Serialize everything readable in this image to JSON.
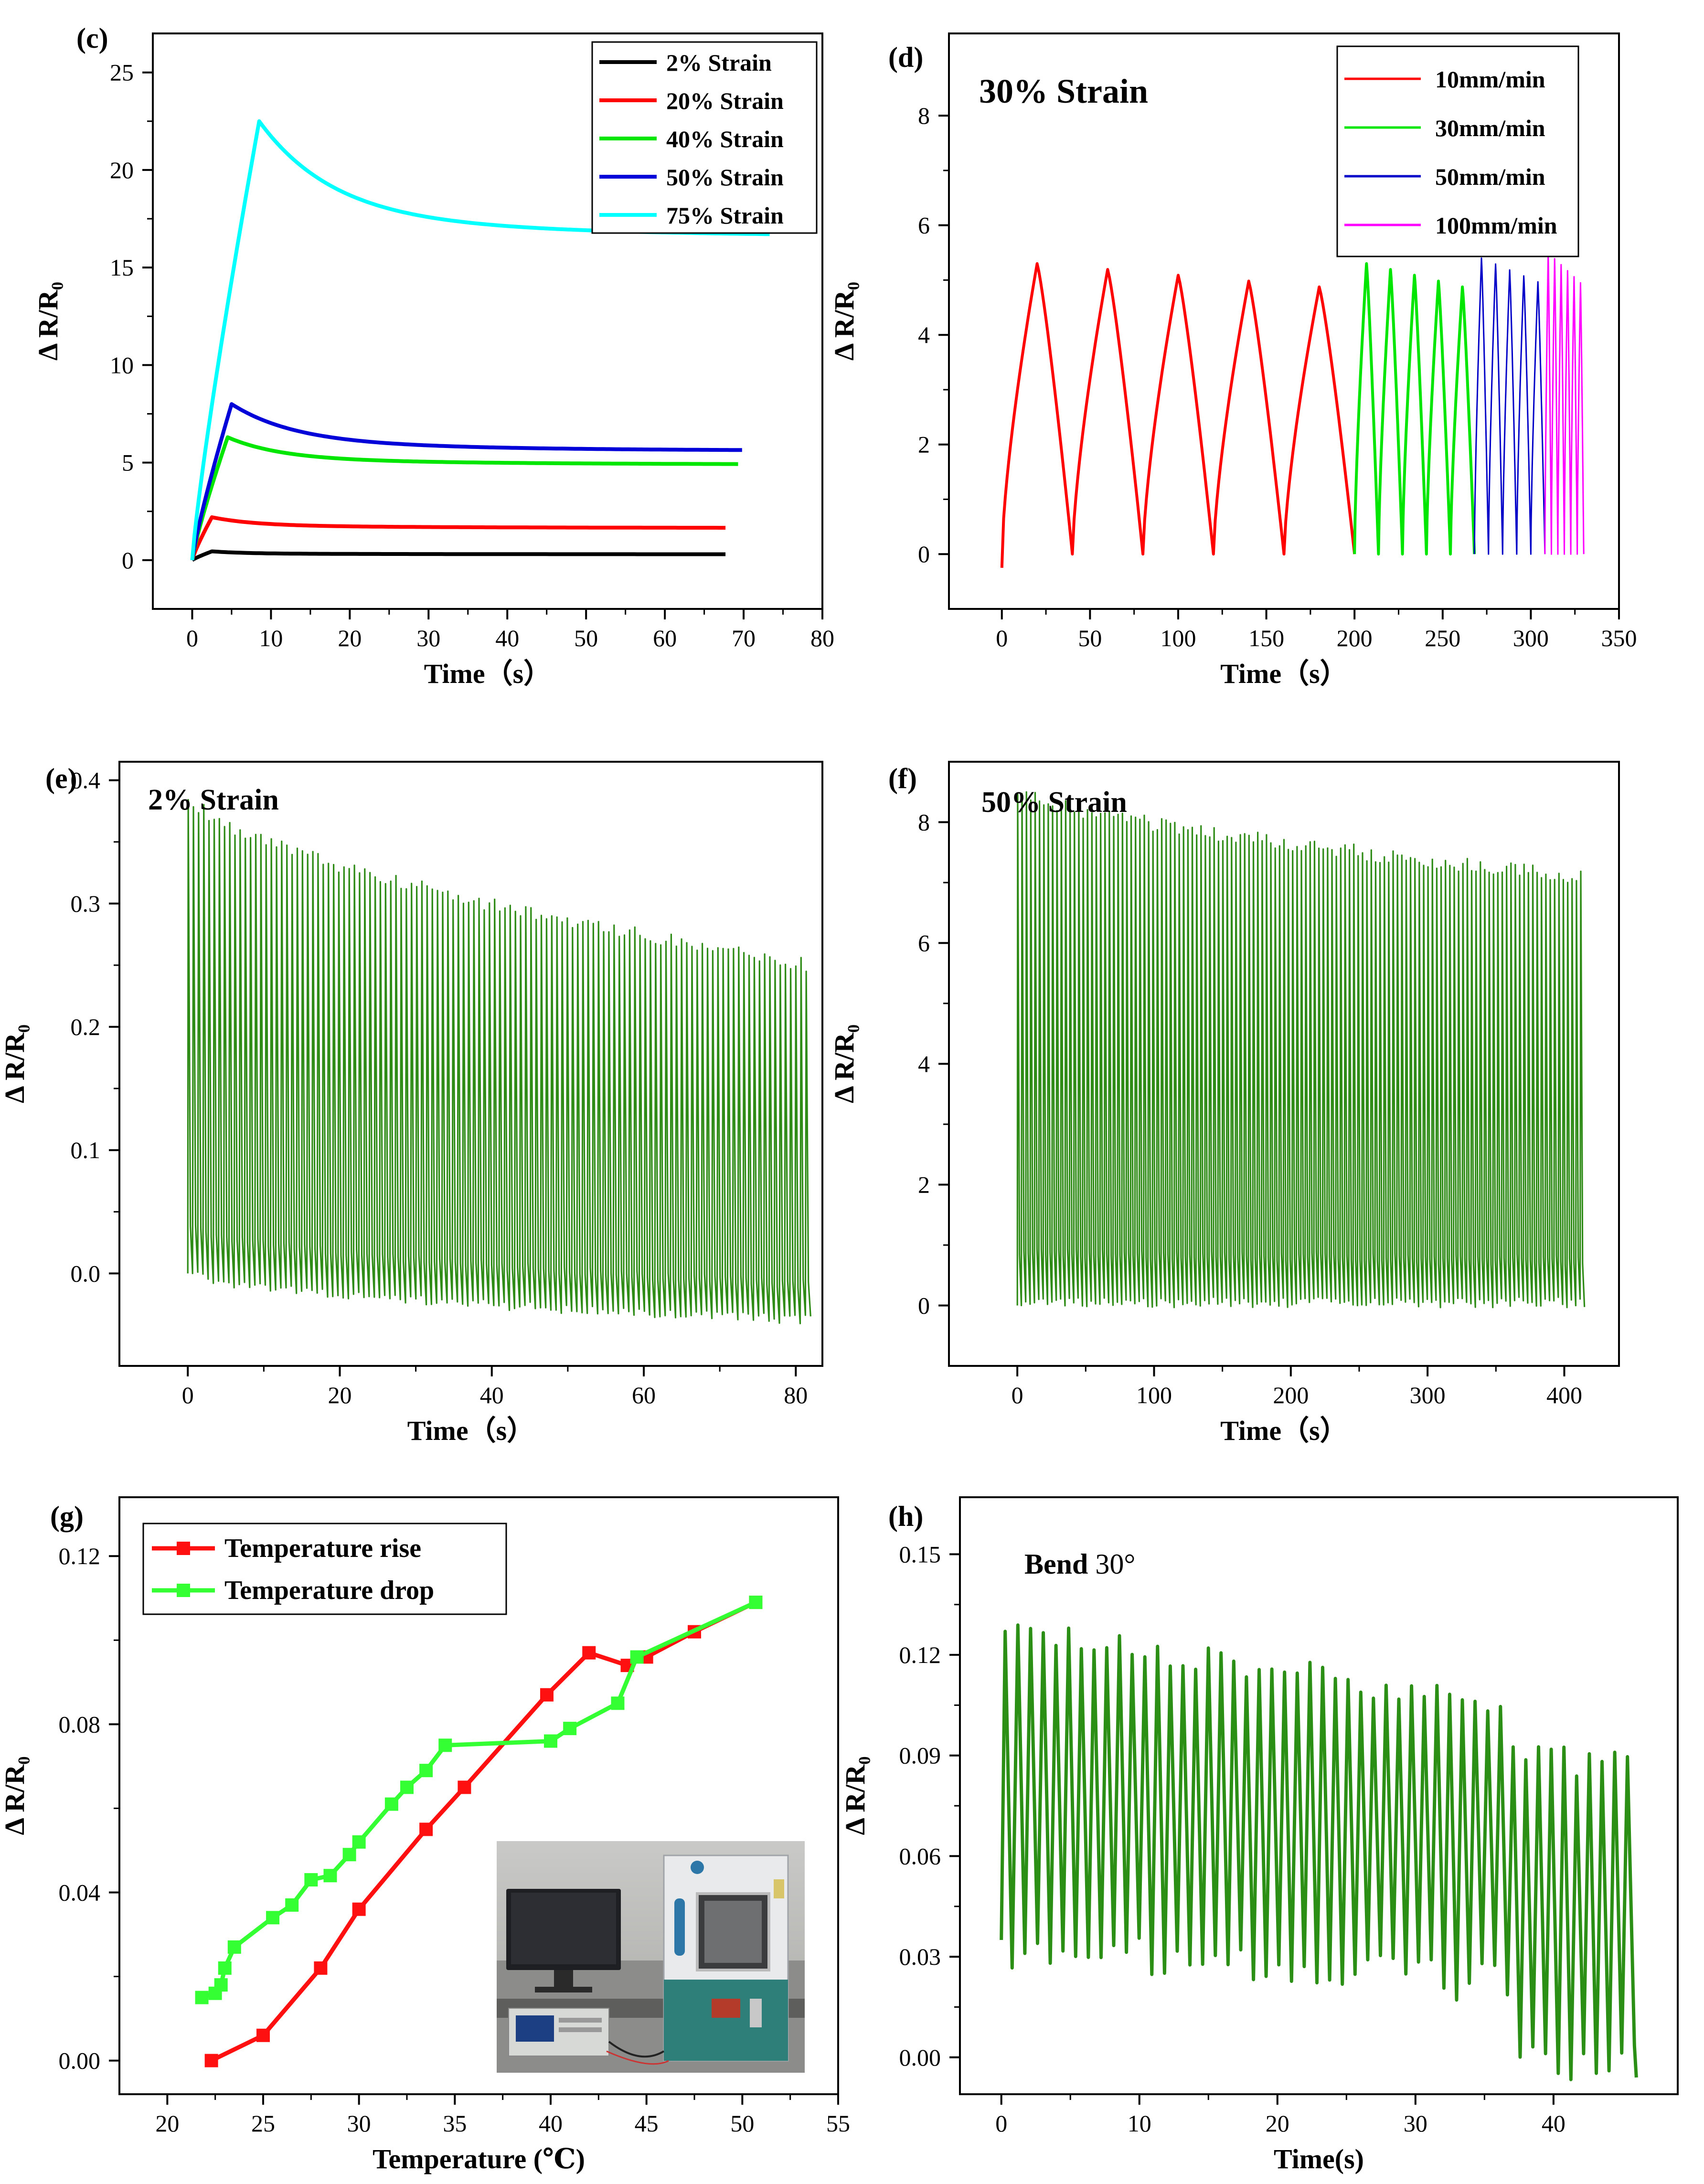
{
  "chart_data": [
    {
      "panel": "(c)",
      "type": "line",
      "title": "",
      "xlabel": "Time（s）",
      "ylabel": "Δ R/R₀",
      "xlim": [
        -5,
        80
      ],
      "ylim": [
        -2.5,
        27
      ],
      "xticks": [
        0,
        10,
        20,
        30,
        40,
        50,
        60,
        70,
        80
      ],
      "yticks": [
        0,
        5,
        10,
        15,
        20,
        25
      ],
      "legend_position": "top-right",
      "series": [
        {
          "name": "2%   Strain",
          "color": "#000000",
          "peak": 0.45,
          "peak_time": 2.5,
          "end_time": 68,
          "end_value": 0.3
        },
        {
          "name": "20% Strain",
          "color": "#ff0000",
          "peak": 2.2,
          "peak_time": 2.5,
          "end_time": 68,
          "end_value": 1.65
        },
        {
          "name": "40% Strain",
          "color": "#00e600",
          "peak": 6.3,
          "peak_time": 4.5,
          "end_time": 69.5,
          "end_value": 4.9
        },
        {
          "name": "50% Strain",
          "color": "#0000d8",
          "peak": 8.0,
          "peak_time": 5.0,
          "end_time": 70,
          "end_value": 5.6
        },
        {
          "name": "75% Strain",
          "color": "#00ffff",
          "peak": 22.5,
          "peak_time": 8.5,
          "end_time": 73.5,
          "end_value": 16.6
        }
      ]
    },
    {
      "panel": "(d)",
      "type": "line",
      "annotation": "30% Strain",
      "xlabel": "Time（s）",
      "ylabel": "Δ R/R₀",
      "xlim": [
        -30,
        350
      ],
      "ylim": [
        -1,
        9.5
      ],
      "xticks": [
        0,
        50,
        100,
        150,
        200,
        250,
        300,
        350
      ],
      "yticks": [
        0,
        2,
        4,
        6,
        8
      ],
      "legend_position": "top-right",
      "series": [
        {
          "name": "10mm/min",
          "color": "#ff0000",
          "t_start": 0,
          "t_end": 200,
          "cycles": 5,
          "peak": 5.3
        },
        {
          "name": "30mm/min",
          "color": "#00e600",
          "t_start": 200,
          "t_end": 268,
          "cycles": 5,
          "peak": 5.3
        },
        {
          "name": "50mm/min",
          "color": "#0000c8",
          "t_start": 268,
          "t_end": 308,
          "cycles": 5,
          "peak": 5.4
        },
        {
          "name": "100mm/min",
          "color": "#ff00ff",
          "t_start": 308,
          "t_end": 330,
          "cycles": 6,
          "peak": 5.5
        }
      ]
    },
    {
      "panel": "(e)",
      "type": "line",
      "annotation": "2% Strain",
      "xlabel": "Time（s）",
      "ylabel": "Δ R/R₀",
      "xlim": [
        -9,
        83.5
      ],
      "ylim": [
        -0.075,
        0.415
      ],
      "xticks": [
        0,
        20,
        40,
        60,
        80
      ],
      "yticks": [
        0.0,
        0.1,
        0.2,
        0.3,
        0.4
      ],
      "color": "#2e8b16",
      "series": [
        {
          "name": "2% Strain",
          "t_end": 82,
          "cycles": 120,
          "peak_start": 0.39,
          "peak_end": 0.25,
          "valley_start": 0.0,
          "valley_end": -0.04
        }
      ]
    },
    {
      "panel": "(f)",
      "type": "line",
      "annotation": "50% Strain",
      "xlabel": "Time（s）",
      "ylabel": "Δ R/R₀",
      "xlim": [
        -50,
        440
      ],
      "ylim": [
        -1,
        9
      ],
      "xticks": [
        0,
        100,
        200,
        300,
        400
      ],
      "yticks": [
        0,
        2,
        4,
        6,
        8
      ],
      "color": "#2e8b16",
      "series": [
        {
          "name": "50% Strain",
          "t_end": 415,
          "cycles": 130,
          "peak_start": 8.6,
          "peak_end": 7.1,
          "valley_start": 0.0,
          "valley_end": 0.0
        }
      ]
    },
    {
      "panel": "(g)",
      "type": "line",
      "xlabel": "Temperature (℃)",
      "ylabel": "Δ R/R₀",
      "xlim": [
        17.5,
        55
      ],
      "ylim": [
        -0.008,
        0.134
      ],
      "xticks": [
        20,
        25,
        30,
        35,
        40,
        45,
        50,
        55
      ],
      "yticks": [
        0.0,
        0.04,
        0.08,
        0.12
      ],
      "legend_position": "top-left",
      "series": [
        {
          "name": "Temperature rise",
          "color": "#ff1010",
          "x": [
            22.3,
            25.0,
            28.0,
            30.0,
            33.5,
            35.5,
            39.8,
            42.0,
            44.0,
            45.0,
            47.5,
            50.7
          ],
          "y": [
            0.0,
            0.006,
            0.022,
            0.036,
            0.055,
            0.065,
            0.087,
            0.097,
            0.094,
            0.096,
            0.102,
            0.109
          ]
        },
        {
          "name": "Temperature drop",
          "color": "#33ff33",
          "x": [
            21.8,
            22.5,
            22.8,
            23.0,
            23.5,
            25.5,
            26.5,
            27.5,
            28.5,
            29.5,
            30.0,
            31.7,
            32.5,
            33.5,
            34.5,
            40.0,
            41.0,
            43.5,
            44.5,
            50.7
          ],
          "y": [
            0.015,
            0.016,
            0.018,
            0.022,
            0.027,
            0.034,
            0.037,
            0.043,
            0.044,
            0.049,
            0.052,
            0.061,
            0.065,
            0.069,
            0.075,
            0.076,
            0.079,
            0.085,
            0.096,
            0.109
          ]
        }
      ]
    },
    {
      "panel": "(h)",
      "type": "line",
      "annotation_bold": "Bend",
      "annotation_rest": " 30°",
      "xlabel": "Time(s)",
      "ylabel": "Δ R/R₀",
      "xlim": [
        -3,
        49
      ],
      "ylim": [
        -0.011,
        0.167
      ],
      "xticks": [
        0,
        10,
        20,
        30,
        40
      ],
      "yticks": [
        0.0,
        0.03,
        0.06,
        0.09,
        0.12,
        0.15
      ],
      "color": "#2a8f14",
      "series": [
        {
          "name": "Bend 30°",
          "t_end": 46,
          "cycles": 50
        }
      ]
    }
  ]
}
